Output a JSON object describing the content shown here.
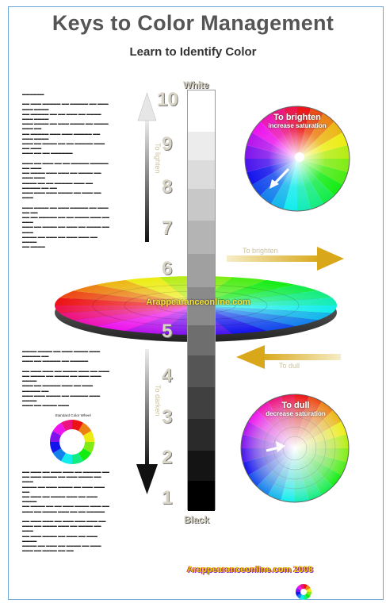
{
  "poster": {
    "title": "Keys to Color Management",
    "subtitle": "Learn to Identify Color",
    "top_end_label": "White",
    "bottom_end_label": "Black",
    "hue_disc_label": "Arappearanceonline.com",
    "footer_site": "Arappearanceonline.com 2008",
    "value_labels": [
      "10",
      "9",
      "8",
      "7",
      "6",
      "5",
      "4",
      "3",
      "2",
      "1"
    ],
    "arrows": {
      "up_label": "To lighten",
      "down_label": "To darken",
      "right_label": "To brighten",
      "left_label": "To dull"
    },
    "wheels": {
      "top_title_1": "To brighten",
      "top_title_2": "increase saturation",
      "bottom_title_1": "To dull",
      "bottom_title_2": "decrease saturation"
    },
    "small_wheel_caption": "Standard Color Wheel"
  },
  "colors": {
    "title": "#555555",
    "arrow_gold": "#d9b22a",
    "arrow_dark": "#222222",
    "frame": "#6aa3d8"
  }
}
